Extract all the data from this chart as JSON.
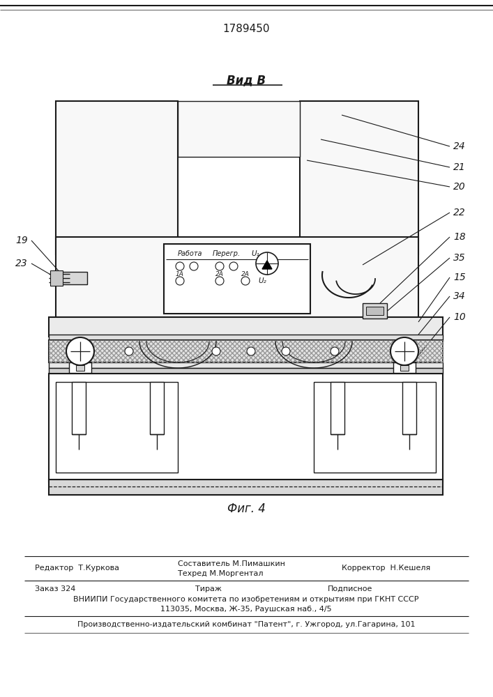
{
  "patent_number": "1789450",
  "view_label": "Вид В",
  "fig_label": "Фиг. 4",
  "line_color": "#1a1a1a",
  "editor_line": "Редактор  Т.Куркова",
  "composer_line1": "Составитель М.Пимашкин",
  "composer_line2": "Техред М.Моргентал",
  "corrector": "Корректор  Н.Кешеля",
  "order_line": "Заказ 324",
  "tirazh": "Тираж",
  "podpisnoe": "Подписное",
  "vnipi_line1": "ВНИИПИ Государственного комитета по изобретениям и открытиям при ГКНТ СССР",
  "vnipi_line2": "113035, Москва, Ж-35, Раушская наб., 4/5",
  "factory_line": "Производственно-издательский комбинат \"Патент\", г. Ужгород, ул.Гагарина, 101"
}
